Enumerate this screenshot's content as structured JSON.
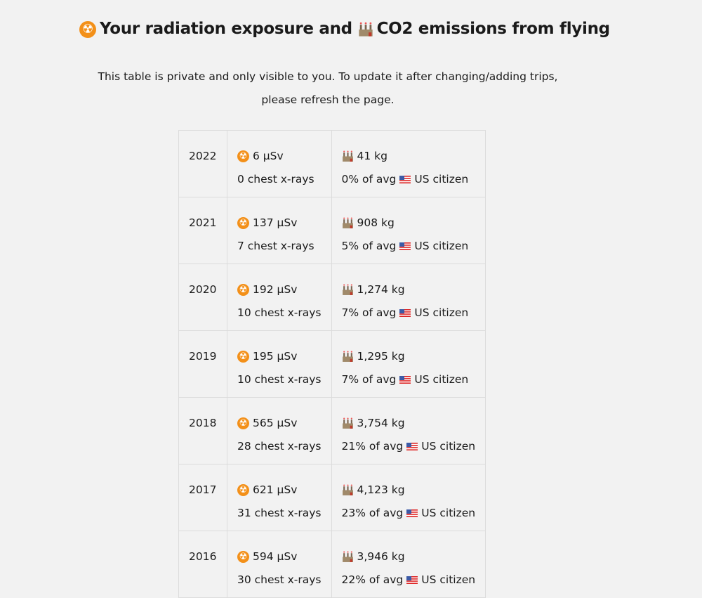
{
  "title": "Your radiation exposure and CO2 emissions from flying",
  "title_parts": {
    "a": "Your radiation exposure and",
    "b": "CO2 emissions from flying"
  },
  "intro": "This table is private and only visible to you. To update it after changing/adding trips, please refresh the page.",
  "colors": {
    "background": "#f2f2f2",
    "border": "#dcdcdc",
    "radiation": "#f39019"
  },
  "rows": [
    {
      "year": "2022",
      "dose": "6 µSv",
      "xrays": "0 chest x-rays",
      "co2": "41 kg",
      "pct": "0% of avg",
      "citizen": "US citizen"
    },
    {
      "year": "2021",
      "dose": "137 µSv",
      "xrays": "7 chest x-rays",
      "co2": "908 kg",
      "pct": "5% of avg",
      "citizen": "US citizen"
    },
    {
      "year": "2020",
      "dose": "192 µSv",
      "xrays": "10 chest x-rays",
      "co2": "1,274 kg",
      "pct": "7% of avg",
      "citizen": "US citizen"
    },
    {
      "year": "2019",
      "dose": "195 µSv",
      "xrays": "10 chest x-rays",
      "co2": "1,295 kg",
      "pct": "7% of avg",
      "citizen": "US citizen"
    },
    {
      "year": "2018",
      "dose": "565 µSv",
      "xrays": "28 chest x-rays",
      "co2": "3,754 kg",
      "pct": "21% of avg",
      "citizen": "US citizen"
    },
    {
      "year": "2017",
      "dose": "621 µSv",
      "xrays": "31 chest x-rays",
      "co2": "4,123 kg",
      "pct": "23% of avg",
      "citizen": "US citizen"
    },
    {
      "year": "2016",
      "dose": "594 µSv",
      "xrays": "30 chest x-rays",
      "co2": "3,946 kg",
      "pct": "22% of avg",
      "citizen": "US citizen"
    }
  ]
}
